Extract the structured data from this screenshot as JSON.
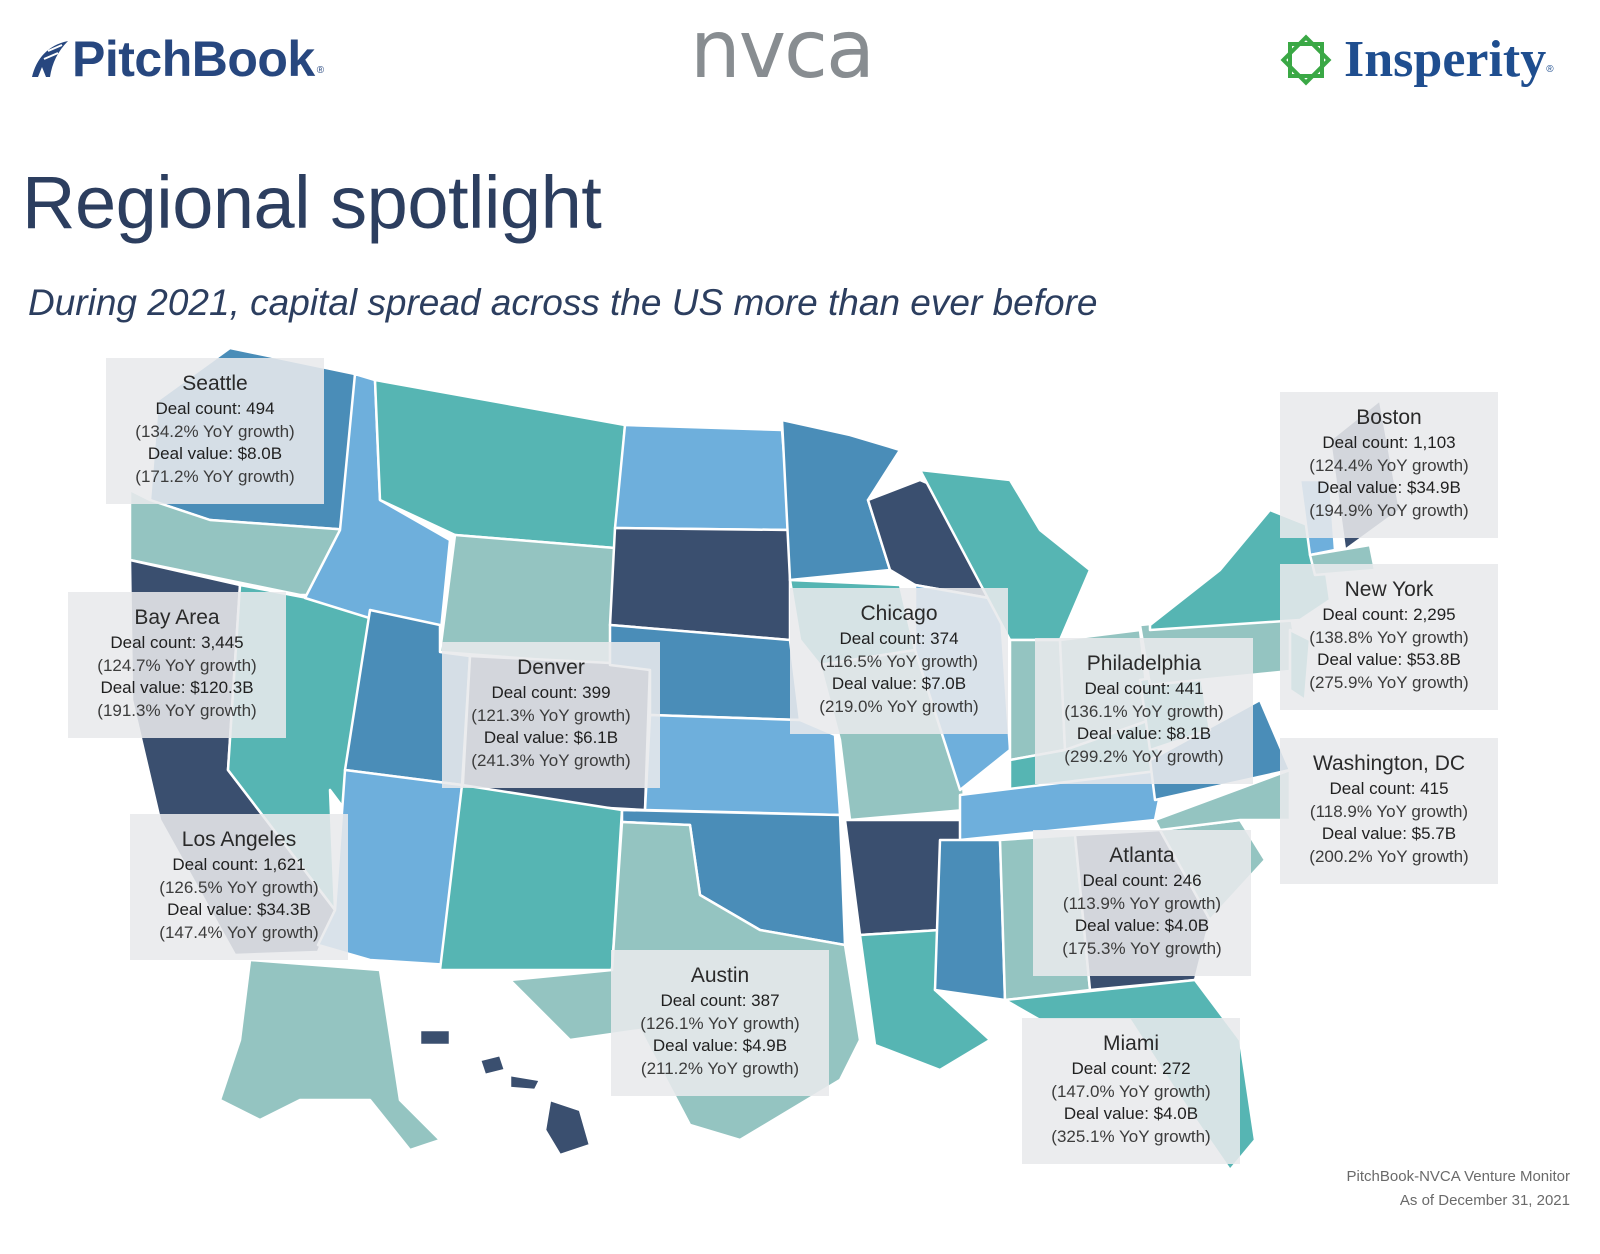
{
  "header": {
    "pitchbook": "PitchBook",
    "pitchbook_mark": "®",
    "nvca": "nvca",
    "insperity": "Insperity",
    "insperity_mark": "®"
  },
  "title": "Regional spotlight",
  "subtitle": "During 2021, capital spread across the US more than ever before",
  "palette": {
    "dark_navy": "#3a4f6f",
    "steel_blue": "#4a8db8",
    "sky_blue": "#6eafdc",
    "teal": "#56b5b3",
    "sage": "#94c4c1",
    "title_color": "#2c3e5f"
  },
  "regions": [
    {
      "city": "Seattle",
      "deal_count": "Deal count: 494",
      "count_growth": "(134.2% YoY growth)",
      "deal_value": "Deal value: $8.0B",
      "value_growth": "(171.2% YoY growth)"
    },
    {
      "city": "Bay Area",
      "deal_count": "Deal count: 3,445",
      "count_growth": "(124.7% YoY growth)",
      "deal_value": "Deal value: $120.3B",
      "value_growth": "(191.3% YoY growth)"
    },
    {
      "city": "Los Angeles",
      "deal_count": "Deal count: 1,621",
      "count_growth": "(126.5% YoY growth)",
      "deal_value": "Deal value: $34.3B",
      "value_growth": "(147.4% YoY growth)"
    },
    {
      "city": "Denver",
      "deal_count": "Deal count: 399",
      "count_growth": "(121.3% YoY growth)",
      "deal_value": "Deal value: $6.1B",
      "value_growth": "(241.3% YoY growth)"
    },
    {
      "city": "Austin",
      "deal_count": "Deal count: 387",
      "count_growth": "(126.1% YoY growth)",
      "deal_value": "Deal value: $4.9B",
      "value_growth": "(211.2% YoY growth)"
    },
    {
      "city": "Chicago",
      "deal_count": "Deal count: 374",
      "count_growth": "(116.5% YoY growth)",
      "deal_value": "Deal value: $7.0B",
      "value_growth": "(219.0% YoY growth)"
    },
    {
      "city": "Philadelphia",
      "deal_count": "Deal count: 441",
      "count_growth": "(136.1% YoY growth)",
      "deal_value": "Deal value: $8.1B",
      "value_growth": "(299.2% YoY growth)"
    },
    {
      "city": "Atlanta",
      "deal_count": "Deal count: 246",
      "count_growth": "(113.9% YoY growth)",
      "deal_value": "Deal value: $4.0B",
      "value_growth": "(175.3% YoY growth)"
    },
    {
      "city": "Miami",
      "deal_count": "Deal count: 272",
      "count_growth": "(147.0% YoY growth)",
      "deal_value": "Deal value: $4.0B",
      "value_growth": "(325.1% YoY growth)"
    },
    {
      "city": "Boston",
      "deal_count": "Deal count: 1,103",
      "count_growth": "(124.4% YoY growth)",
      "deal_value": "Deal value: $34.9B",
      "value_growth": "(194.9% YoY growth)"
    },
    {
      "city": "New York",
      "deal_count": "Deal count: 2,295",
      "count_growth": "(138.8% YoY growth)",
      "deal_value": "Deal value: $53.8B",
      "value_growth": "(275.9% YoY growth)"
    },
    {
      "city": "Washington, DC",
      "deal_count": "Deal count: 415",
      "count_growth": "(118.9% YoY growth)",
      "deal_value": "Deal value: $5.7B",
      "value_growth": "(200.2% YoY growth)"
    }
  ],
  "source": {
    "line1": "PitchBook-NVCA Venture Monitor",
    "line2": "As of December 31, 2021"
  }
}
